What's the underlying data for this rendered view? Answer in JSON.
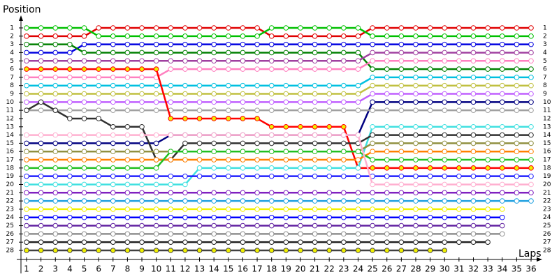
{
  "chart_data": {
    "type": "line",
    "y_label": "Position",
    "x_label": "Laps",
    "xlim": [
      1,
      36
    ],
    "ylim": [
      1,
      28
    ],
    "invert_y": true,
    "grid": false,
    "xticks": [
      1,
      2,
      3,
      4,
      5,
      6,
      7,
      8,
      9,
      10,
      11,
      12,
      13,
      14,
      15,
      16,
      17,
      18,
      19,
      20,
      21,
      22,
      23,
      24,
      25,
      26,
      27,
      28,
      29,
      30,
      31,
      32,
      33,
      34,
      35,
      36
    ],
    "yticks": [
      1,
      2,
      3,
      4,
      5,
      6,
      7,
      8,
      9,
      10,
      11,
      12,
      13,
      14,
      15,
      16,
      17,
      18,
      19,
      20,
      21,
      22,
      23,
      24,
      25,
      26,
      27,
      28
    ],
    "marker_fill": "#ffffff",
    "series": [
      {
        "color": "#e00000",
        "values": [
          2,
          2,
          2,
          2,
          2,
          1,
          1,
          1,
          1,
          1,
          1,
          1,
          1,
          1,
          1,
          1,
          1,
          2,
          2,
          2,
          2,
          2,
          2,
          2,
          1,
          1,
          1,
          1,
          1,
          1,
          1,
          1,
          1,
          1,
          1,
          1
        ]
      },
      {
        "color": "#00c000",
        "values": [
          1,
          1,
          1,
          1,
          1,
          2,
          2,
          2,
          2,
          2,
          2,
          2,
          2,
          2,
          2,
          2,
          2,
          1,
          1,
          1,
          1,
          1,
          1,
          1,
          2,
          2,
          2,
          2,
          2,
          2,
          2,
          2,
          2,
          2,
          2,
          2
        ]
      },
      {
        "color": "#0000e0",
        "values": [
          4,
          4,
          4,
          4,
          3,
          3,
          3,
          3,
          3,
          3,
          3,
          3,
          3,
          3,
          3,
          3,
          3,
          3,
          3,
          3,
          3,
          3,
          3,
          3,
          3,
          3,
          3,
          3,
          3,
          3,
          3,
          3,
          3,
          3,
          3,
          3
        ]
      },
      {
        "color": "#008000",
        "values": [
          3,
          3,
          3,
          3,
          4,
          4,
          4,
          4,
          4,
          4,
          4,
          4,
          4,
          4,
          4,
          4,
          4,
          4,
          4,
          4,
          4,
          4,
          4,
          4,
          6,
          6,
          6,
          6,
          6,
          6,
          6,
          6,
          6,
          6,
          6,
          6
        ]
      },
      {
        "color": "#a040a0",
        "values": [
          5,
          5,
          5,
          5,
          5,
          5,
          5,
          5,
          5,
          5,
          5,
          5,
          5,
          5,
          5,
          5,
          5,
          5,
          5,
          5,
          5,
          5,
          5,
          5,
          4,
          4,
          4,
          4,
          4,
          4,
          4,
          4,
          4,
          4,
          4,
          4
        ]
      },
      {
        "color": "#ff80c0",
        "values": [
          7,
          7,
          7,
          7,
          7,
          7,
          7,
          7,
          7,
          7,
          6,
          6,
          6,
          6,
          6,
          6,
          6,
          6,
          6,
          6,
          6,
          6,
          6,
          6,
          5,
          5,
          5,
          5,
          5,
          5,
          5,
          5,
          5,
          5,
          5,
          5
        ]
      },
      {
        "color": "#00c0e0",
        "values": [
          8,
          8,
          8,
          8,
          8,
          8,
          8,
          8,
          8,
          8,
          8,
          8,
          8,
          8,
          8,
          8,
          8,
          8,
          8,
          8,
          8,
          8,
          8,
          8,
          7,
          7,
          7,
          7,
          7,
          7,
          7,
          7,
          7,
          7,
          7,
          7
        ]
      },
      {
        "color": "#c0c040",
        "values": [
          9,
          9,
          9,
          9,
          9,
          9,
          9,
          9,
          9,
          9,
          9,
          9,
          9,
          9,
          9,
          9,
          9,
          9,
          9,
          9,
          9,
          9,
          9,
          9,
          8,
          8,
          8,
          8,
          8,
          8,
          8,
          8,
          8,
          8,
          8,
          8
        ]
      },
      {
        "color": "#c060ff",
        "values": [
          10,
          10,
          10,
          10,
          10,
          10,
          10,
          10,
          10,
          10,
          10,
          10,
          10,
          10,
          10,
          10,
          10,
          10,
          10,
          10,
          10,
          10,
          10,
          10,
          9,
          9,
          9,
          9,
          9,
          9,
          9,
          9,
          9,
          9,
          9,
          9
        ]
      },
      {
        "color": "#000080",
        "values": [
          15,
          15,
          15,
          15,
          15,
          15,
          15,
          15,
          15,
          15,
          14,
          14,
          14,
          14,
          14,
          14,
          14,
          14,
          14,
          14,
          14,
          14,
          14,
          14,
          10,
          10,
          10,
          10,
          10,
          10,
          10,
          10,
          10,
          10,
          10,
          10
        ]
      },
      {
        "color": "#a0a0a0",
        "values": [
          11,
          11,
          11,
          11,
          11,
          11,
          11,
          11,
          11,
          11,
          11,
          11,
          11,
          11,
          11,
          11,
          11,
          11,
          11,
          11,
          11,
          11,
          11,
          11,
          11,
          11,
          11,
          11,
          11,
          11,
          11,
          11,
          11,
          11,
          11,
          11
        ]
      },
      {
        "color": "#ff0000",
        "marker_fill": "#f0f000",
        "values": [
          6,
          6,
          6,
          6,
          6,
          6,
          6,
          6,
          6,
          6,
          12,
          12,
          12,
          12,
          12,
          12,
          12,
          13,
          13,
          13,
          13,
          13,
          13,
          18,
          18,
          18,
          18,
          18,
          18,
          18,
          18,
          18,
          18,
          18,
          18,
          18
        ]
      },
      {
        "color": "#40e0e0",
        "values": [
          20,
          20,
          20,
          20,
          20,
          20,
          20,
          20,
          20,
          20,
          20,
          20,
          18,
          18,
          18,
          18,
          18,
          18,
          18,
          18,
          18,
          18,
          18,
          18,
          13,
          13,
          13,
          13,
          13,
          13,
          13,
          13,
          13,
          13,
          13,
          13
        ]
      },
      {
        "color": "#303030",
        "values": [
          11,
          10,
          11,
          12,
          12,
          12,
          13,
          13,
          13,
          17,
          17,
          15,
          15,
          15,
          15,
          15,
          15,
          15,
          15,
          15,
          15,
          15,
          15,
          15,
          14,
          14,
          14,
          14,
          14,
          14,
          14,
          14,
          14,
          14,
          14,
          14
        ]
      },
      {
        "color": "#909040",
        "values": [
          16,
          16,
          16,
          16,
          16,
          16,
          16,
          16,
          16,
          16,
          16,
          16,
          16,
          16,
          16,
          16,
          16,
          16,
          16,
          16,
          16,
          16,
          16,
          16,
          15,
          15,
          15,
          15,
          15,
          15,
          15,
          15,
          15,
          15,
          15,
          15
        ]
      },
      {
        "color": "#ff8000",
        "values": [
          17,
          17,
          17,
          17,
          17,
          17,
          17,
          17,
          17,
          17,
          17,
          17,
          17,
          17,
          17,
          17,
          17,
          17,
          17,
          17,
          17,
          17,
          17,
          17,
          16,
          16,
          16,
          16,
          16,
          16,
          16,
          16,
          16,
          16,
          16,
          16
        ]
      },
      {
        "color": "#20c020",
        "values": [
          18,
          18,
          18,
          18,
          18,
          18,
          18,
          18,
          18,
          18,
          16,
          16,
          16,
          16,
          16,
          16,
          16,
          16,
          16,
          16,
          16,
          16,
          16,
          16,
          17,
          17,
          17,
          17,
          17,
          17,
          17,
          17,
          17,
          17,
          17,
          17
        ]
      },
      {
        "color": "#2020ff",
        "values": [
          19,
          19,
          19,
          19,
          19,
          19,
          19,
          19,
          19,
          19,
          19,
          19,
          19,
          19,
          19,
          19,
          19,
          19,
          19,
          19,
          19,
          19,
          19,
          19,
          19,
          19,
          19,
          19,
          19,
          19,
          19,
          19,
          19,
          19,
          19,
          19
        ]
      },
      {
        "color": "#ffb0d0",
        "values": [
          14,
          14,
          14,
          14,
          14,
          14,
          14,
          14,
          14,
          14,
          14,
          14,
          14,
          14,
          14,
          14,
          14,
          14,
          14,
          14,
          14,
          14,
          14,
          14,
          20,
          20,
          20,
          20,
          20,
          20,
          20,
          20,
          20,
          20,
          20,
          20
        ]
      },
      {
        "color": "#8020c0",
        "values": [
          21,
          21,
          21,
          21,
          21,
          21,
          21,
          21,
          21,
          21,
          21,
          21,
          21,
          21,
          21,
          21,
          21,
          21,
          21,
          21,
          21,
          21,
          21,
          21,
          21,
          21,
          21,
          21,
          21,
          21,
          21,
          21,
          21,
          21,
          21,
          21
        ]
      },
      {
        "color": "#20a0e0",
        "values": [
          22,
          22,
          22,
          22,
          22,
          22,
          22,
          22,
          22,
          22,
          22,
          22,
          22,
          22,
          22,
          22,
          22,
          22,
          22,
          22,
          22,
          22,
          22,
          22,
          22,
          22,
          22,
          22,
          22,
          22,
          22,
          22,
          22,
          22,
          22,
          22
        ]
      },
      {
        "color": "#f0f000",
        "values": [
          23,
          23,
          23,
          23,
          23,
          23,
          23,
          23,
          23,
          23,
          23,
          23,
          23,
          23,
          23,
          23,
          23,
          23,
          23,
          23,
          23,
          23,
          23,
          23,
          23,
          23,
          23,
          23,
          23,
          23,
          23,
          23,
          23,
          23,
          null,
          null
        ]
      },
      {
        "color": "#0000ff",
        "values": [
          24,
          24,
          24,
          24,
          24,
          24,
          24,
          24,
          24,
          24,
          24,
          24,
          24,
          24,
          24,
          24,
          24,
          24,
          24,
          24,
          24,
          24,
          24,
          24,
          24,
          24,
          24,
          24,
          24,
          24,
          24,
          24,
          24,
          24,
          null,
          null
        ]
      },
      {
        "color": "#6020a0",
        "values": [
          25,
          25,
          25,
          25,
          25,
          25,
          25,
          25,
          25,
          25,
          25,
          25,
          25,
          25,
          25,
          25,
          25,
          25,
          25,
          25,
          25,
          25,
          25,
          25,
          25,
          25,
          25,
          25,
          25,
          25,
          25,
          25,
          25,
          25,
          null,
          null
        ]
      },
      {
        "color": "#909090",
        "values": [
          26,
          26,
          26,
          26,
          26,
          26,
          26,
          26,
          26,
          26,
          26,
          26,
          26,
          26,
          26,
          26,
          26,
          26,
          26,
          26,
          26,
          26,
          26,
          26,
          26,
          26,
          26,
          26,
          26,
          26,
          26,
          26,
          26,
          26,
          null,
          null
        ]
      },
      {
        "color": "#202020",
        "values": [
          27,
          27,
          27,
          27,
          27,
          27,
          27,
          27,
          27,
          27,
          27,
          27,
          27,
          27,
          27,
          27,
          27,
          27,
          27,
          27,
          27,
          27,
          27,
          27,
          27,
          27,
          27,
          27,
          27,
          27,
          27,
          27,
          27,
          null,
          null,
          null
        ]
      },
      {
        "color": "#404040",
        "marker_fill": "#f0f000",
        "values": [
          28,
          28,
          28,
          28,
          28,
          28,
          28,
          28,
          28,
          28,
          28,
          28,
          28,
          28,
          28,
          28,
          28,
          28,
          28,
          28,
          28,
          28,
          28,
          28,
          28,
          28,
          28,
          28,
          28,
          28,
          null,
          null,
          null,
          null,
          null,
          null
        ]
      }
    ]
  }
}
